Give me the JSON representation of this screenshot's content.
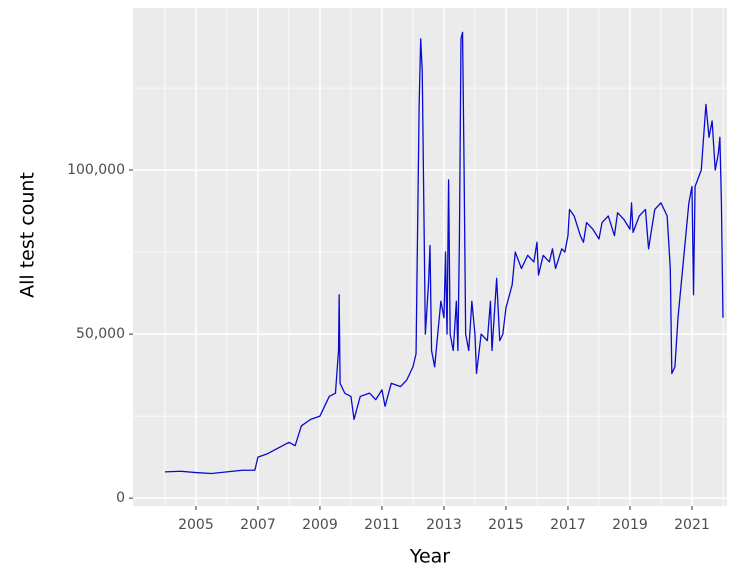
{
  "chart_data": {
    "type": "line",
    "x_label": "Year",
    "y_label": "All test count",
    "xlim": [
      2002.97,
      2022.13
    ],
    "ylim": [
      -2400,
      149400
    ],
    "xticks": [
      2005,
      2007,
      2009,
      2011,
      2013,
      2015,
      2017,
      2019,
      2021
    ],
    "xminor_ticks": [
      2004,
      2006,
      2008,
      2010,
      2012,
      2014,
      2016,
      2018,
      2020,
      2022
    ],
    "yticks": [
      0,
      {
        "value": 50000,
        "label": "50,000"
      },
      {
        "value": 100000,
        "label": "100,000"
      }
    ],
    "yminor_ticks": [
      25000,
      75000,
      125000
    ],
    "grid": true,
    "series": [
      {
        "name": "All test count",
        "color": "#0a0ad0",
        "x": [
          2004.0,
          2004.5,
          2005.0,
          2005.5,
          2006.0,
          2006.5,
          2006.9,
          2007.0,
          2007.3,
          2007.6,
          2008.0,
          2008.2,
          2008.4,
          2008.7,
          2009.0,
          2009.1,
          2009.3,
          2009.5,
          2009.6,
          2009.62,
          2009.65,
          2009.8,
          2010.0,
          2010.1,
          2010.3,
          2010.6,
          2010.8,
          2011.0,
          2011.1,
          2011.3,
          2011.6,
          2011.8,
          2012.0,
          2012.1,
          2012.2,
          2012.25,
          2012.3,
          2012.35,
          2012.4,
          2012.5,
          2012.55,
          2012.6,
          2012.7,
          2012.8,
          2012.9,
          2013.0,
          2013.05,
          2013.1,
          2013.15,
          2013.2,
          2013.3,
          2013.4,
          2013.45,
          2013.5,
          2013.55,
          2013.6,
          2013.65,
          2013.7,
          2013.8,
          2013.9,
          2014.0,
          2014.05,
          2014.2,
          2014.4,
          2014.5,
          2014.55,
          2014.7,
          2014.8,
          2014.9,
          2015.0,
          2015.2,
          2015.3,
          2015.5,
          2015.7,
          2015.9,
          2016.0,
          2016.05,
          2016.2,
          2016.4,
          2016.5,
          2016.6,
          2016.8,
          2016.9,
          2017.0,
          2017.05,
          2017.2,
          2017.4,
          2017.5,
          2017.6,
          2017.8,
          2018.0,
          2018.1,
          2018.3,
          2018.5,
          2018.6,
          2018.8,
          2019.0,
          2019.05,
          2019.1,
          2019.3,
          2019.5,
          2019.6,
          2019.8,
          2020.0,
          2020.2,
          2020.3,
          2020.35,
          2020.45,
          2020.55,
          2020.7,
          2020.8,
          2020.9,
          2021.0,
          2021.05,
          2021.1,
          2021.3,
          2021.45,
          2021.55,
          2021.65,
          2021.75,
          2021.85,
          2021.9,
          2021.95,
          2022.0
        ],
        "values": [
          8000,
          8200,
          7800,
          7500,
          8000,
          8500,
          8500,
          12500,
          13500,
          15000,
          17000,
          16000,
          22000,
          24000,
          25000,
          27000,
          31000,
          32000,
          45000,
          62000,
          35000,
          32000,
          31000,
          24000,
          31000,
          32000,
          30000,
          33000,
          28000,
          35000,
          34000,
          36000,
          40000,
          44000,
          120000,
          140000,
          130000,
          90000,
          50000,
          65000,
          77000,
          45000,
          40000,
          50000,
          60000,
          55000,
          75000,
          50000,
          97000,
          50000,
          45000,
          60000,
          45000,
          80000,
          140000,
          142000,
          100000,
          50000,
          45000,
          60000,
          50000,
          38000,
          50000,
          48000,
          60000,
          45000,
          67000,
          48000,
          50000,
          58000,
          65000,
          75000,
          70000,
          74000,
          72000,
          78000,
          68000,
          74000,
          72000,
          76000,
          70000,
          76000,
          75000,
          80000,
          88000,
          86000,
          80000,
          78000,
          84000,
          82000,
          79000,
          84000,
          86000,
          80000,
          87000,
          85000,
          82000,
          90000,
          81000,
          86000,
          88000,
          76000,
          88000,
          90000,
          86000,
          70000,
          38000,
          40000,
          55000,
          70000,
          80000,
          90000,
          95000,
          62000,
          95000,
          100000,
          120000,
          110000,
          115000,
          100000,
          105000,
          110000,
          90000,
          55000
        ]
      }
    ]
  }
}
